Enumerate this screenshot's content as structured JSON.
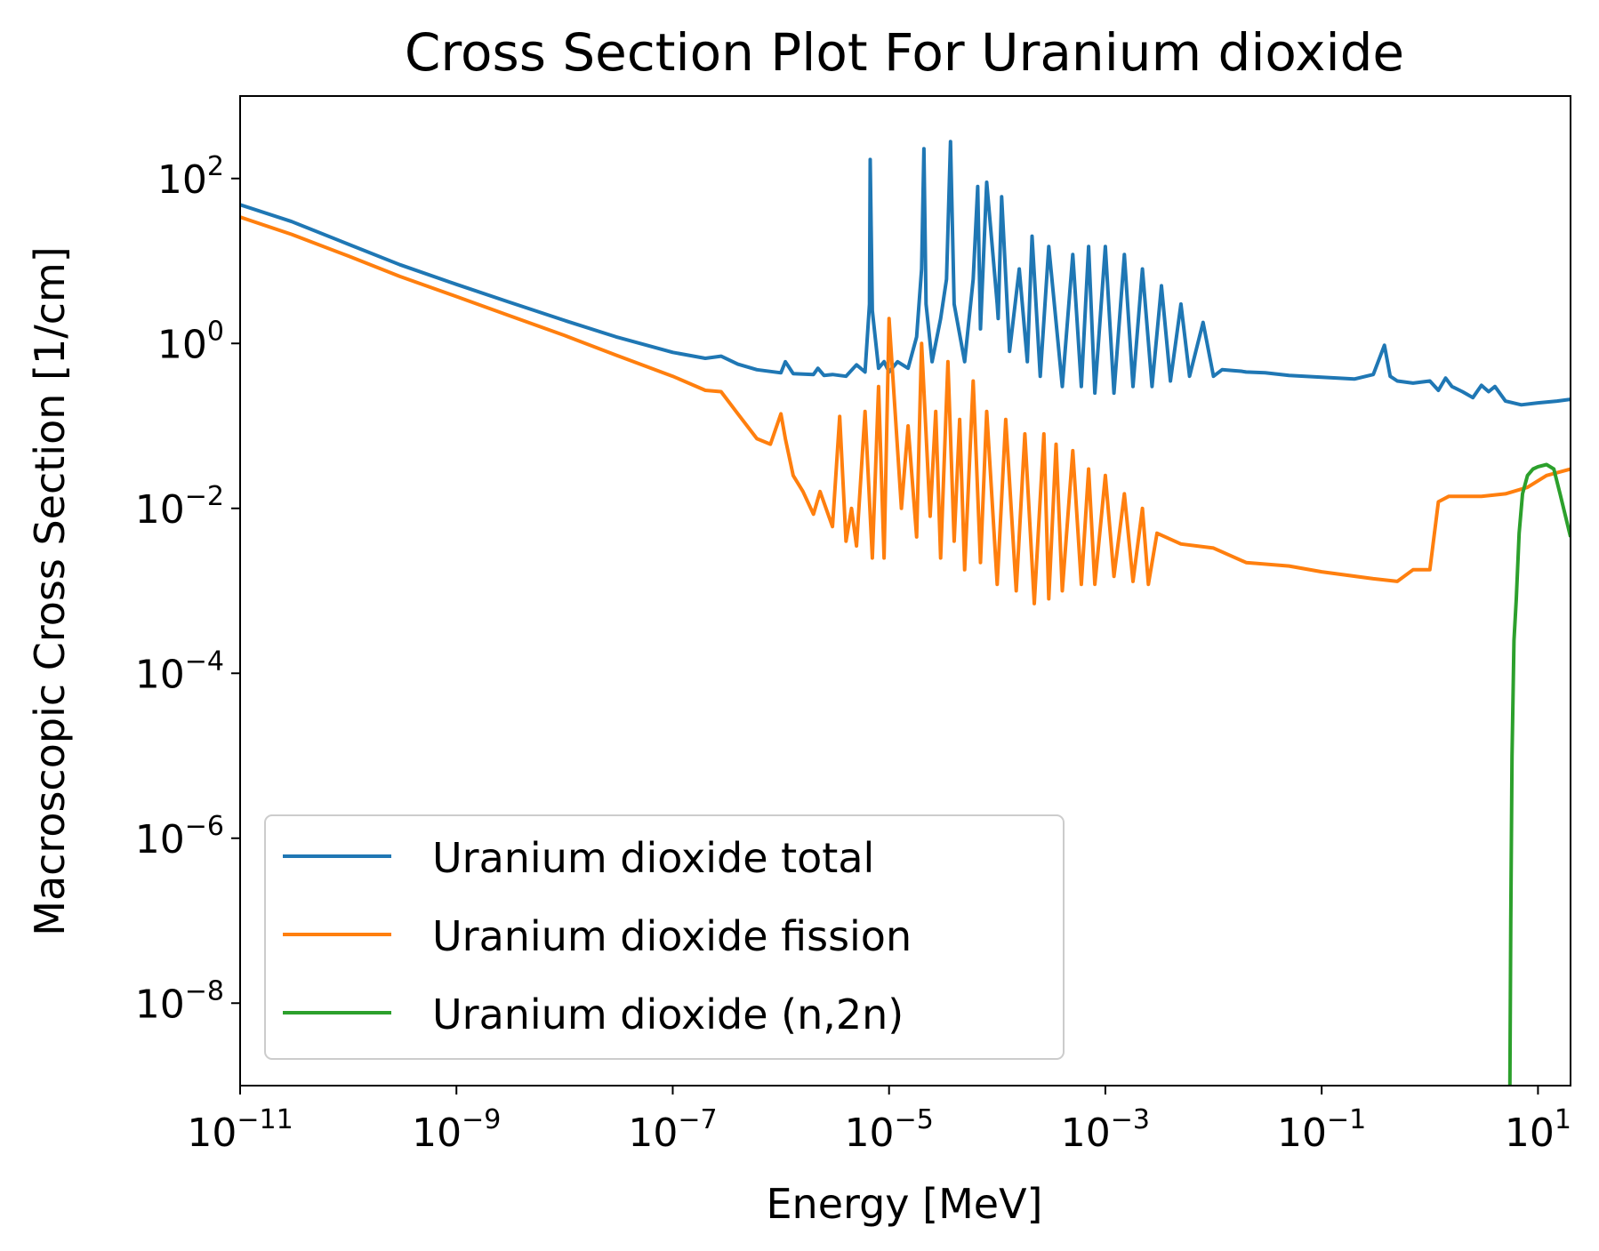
{
  "chart_data": {
    "type": "line",
    "title": "Cross Section Plot For Uranium dioxide",
    "xlabel": "Energy [MeV]",
    "ylabel": "Macroscopic Cross Section [1/cm]",
    "xscale": "log",
    "yscale": "log",
    "xlim": [
      1e-11,
      20
    ],
    "ylim": [
      1e-09,
      1000
    ],
    "grid": false,
    "legend_position": "lower-left",
    "x_ticks": [
      {
        "value": 1e-11,
        "base": "10",
        "exp": "−11"
      },
      {
        "value": 1e-09,
        "base": "10",
        "exp": "−9"
      },
      {
        "value": 1e-07,
        "base": "10",
        "exp": "−7"
      },
      {
        "value": 1e-05,
        "base": "10",
        "exp": "−5"
      },
      {
        "value": 0.001,
        "base": "10",
        "exp": "−3"
      },
      {
        "value": 0.1,
        "base": "10",
        "exp": "−1"
      },
      {
        "value": 10,
        "base": "10",
        "exp": "1"
      }
    ],
    "y_ticks": [
      {
        "value": 1e-08,
        "base": "10",
        "exp": "−8"
      },
      {
        "value": 1e-06,
        "base": "10",
        "exp": "−6"
      },
      {
        "value": 0.0001,
        "base": "10",
        "exp": "−4"
      },
      {
        "value": 0.01,
        "base": "10",
        "exp": "−2"
      },
      {
        "value": 1,
        "base": "10",
        "exp": "0"
      },
      {
        "value": 100,
        "base": "10",
        "exp": "2"
      }
    ],
    "series": [
      {
        "name": "Uranium dioxide total",
        "color": "#1f77b4",
        "x": [
          1e-11,
          3e-11,
          1e-10,
          3e-10,
          1e-09,
          3e-09,
          1e-08,
          3e-08,
          1e-07,
          2e-07,
          2.8e-07,
          4e-07,
          6e-07,
          1e-06,
          1.1e-06,
          1.3e-06,
          2e-06,
          2.2e-06,
          2.5e-06,
          3e-06,
          4e-06,
          5e-06,
          6e-06,
          6.6e-06,
          6.7e-06,
          7e-06,
          8e-06,
          9e-06,
          1e-05,
          1.2e-05,
          1.5e-05,
          1.8e-05,
          2e-05,
          2.1e-05,
          2.2e-05,
          2.5e-05,
          3e-05,
          3.4e-05,
          3.7e-05,
          4e-05,
          5e-05,
          6e-05,
          6.6e-05,
          7e-05,
          8e-05,
          0.0001,
          0.000102,
          0.00011,
          0.00013,
          0.00016,
          0.00019,
          0.00021,
          0.00025,
          0.0003,
          0.0004,
          0.0005,
          0.0006,
          0.0007,
          0.0008,
          0.001,
          0.0012,
          0.0015,
          0.0018,
          0.0022,
          0.0027,
          0.0033,
          0.004,
          0.005,
          0.006,
          0.008,
          0.01,
          0.012,
          0.015,
          0.018,
          0.02,
          0.03,
          0.05,
          0.1,
          0.2,
          0.3,
          0.38,
          0.43,
          0.5,
          0.7,
          1,
          1.2,
          1.4,
          1.6,
          2,
          2.5,
          3,
          3.5,
          4,
          5,
          7,
          10,
          15,
          20
        ],
        "values": [
          48,
          30,
          16,
          9,
          5.2,
          3.2,
          1.9,
          1.2,
          0.78,
          0.66,
          0.7,
          0.56,
          0.48,
          0.44,
          0.6,
          0.43,
          0.42,
          0.5,
          0.41,
          0.42,
          0.4,
          0.55,
          0.45,
          3,
          170,
          2.5,
          0.5,
          0.6,
          0.45,
          0.6,
          0.5,
          1.2,
          8,
          230,
          3,
          0.6,
          2,
          6,
          280,
          3,
          0.6,
          6,
          80,
          1.5,
          90,
          3,
          2,
          60,
          0.8,
          8,
          0.6,
          20,
          0.4,
          15,
          0.3,
          12,
          0.3,
          15,
          0.25,
          15,
          0.25,
          12,
          0.3,
          8,
          0.3,
          5,
          0.35,
          3,
          0.4,
          1.8,
          0.4,
          0.48,
          0.47,
          0.46,
          0.45,
          0.44,
          0.41,
          0.39,
          0.37,
          0.42,
          0.95,
          0.4,
          0.35,
          0.33,
          0.35,
          0.27,
          0.38,
          0.3,
          0.26,
          0.22,
          0.31,
          0.26,
          0.3,
          0.2,
          0.18,
          0.19,
          0.2,
          0.21
        ]
      },
      {
        "name": "Uranium dioxide fission",
        "color": "#ff7f0e",
        "x": [
          1e-11,
          3e-11,
          1e-10,
          3e-10,
          1e-09,
          3e-09,
          1e-08,
          3e-08,
          1e-07,
          2e-07,
          2.8e-07,
          4e-07,
          6e-07,
          8e-07,
          1e-06,
          1.1e-06,
          1.3e-06,
          1.6e-06,
          2e-06,
          2.3e-06,
          3e-06,
          3.5e-06,
          4e-06,
          4.5e-06,
          5e-06,
          6e-06,
          7e-06,
          8e-06,
          9e-06,
          1e-05,
          1.3e-05,
          1.5e-05,
          1.8e-05,
          2e-05,
          2.4e-05,
          2.7e-05,
          3e-05,
          3.5e-05,
          4e-05,
          4.5e-05,
          5e-05,
          6e-05,
          7e-05,
          8e-05,
          0.0001,
          0.00012,
          0.00015,
          0.00018,
          0.00022,
          0.00027,
          0.0003,
          0.00035,
          0.0004,
          0.0005,
          0.0006,
          0.0007,
          0.0008,
          0.001,
          0.0012,
          0.0015,
          0.0018,
          0.0022,
          0.0025,
          0.003,
          0.005,
          0.01,
          0.02,
          0.05,
          0.1,
          0.3,
          0.5,
          0.7,
          1,
          1.2,
          1.5,
          2,
          3,
          5,
          8,
          12,
          20
        ],
        "values": [
          34,
          21,
          11.5,
          6.5,
          3.7,
          2.2,
          1.25,
          0.72,
          0.4,
          0.27,
          0.26,
          0.14,
          0.07,
          0.06,
          0.14,
          0.07,
          0.025,
          0.016,
          0.0085,
          0.016,
          0.006,
          0.13,
          0.004,
          0.01,
          0.0035,
          0.15,
          0.0025,
          0.3,
          0.0025,
          2,
          0.01,
          0.1,
          0.0045,
          1,
          0.008,
          0.15,
          0.0025,
          0.6,
          0.004,
          0.12,
          0.0018,
          0.35,
          0.0022,
          0.15,
          0.0012,
          0.12,
          0.001,
          0.08,
          0.0007,
          0.08,
          0.0008,
          0.06,
          0.001,
          0.05,
          0.0012,
          0.03,
          0.0012,
          0.025,
          0.0015,
          0.015,
          0.0013,
          0.01,
          0.0012,
          0.005,
          0.0037,
          0.0033,
          0.0022,
          0.002,
          0.0017,
          0.0014,
          0.0013,
          0.0018,
          0.0018,
          0.012,
          0.014,
          0.014,
          0.014,
          0.015,
          0.018,
          0.025,
          0.03
        ]
      },
      {
        "name": "Uranium dioxide (n,2n)",
        "color": "#2ca02c",
        "x": [
          5.5,
          5.6,
          5.75,
          6,
          6.3,
          6.7,
          7.2,
          8,
          9,
          10,
          12,
          14,
          16,
          20
        ],
        "values": [
          1e-09,
          1e-07,
          1e-05,
          0.00025,
          0.0008,
          0.005,
          0.015,
          0.025,
          0.03,
          0.032,
          0.034,
          0.03,
          0.015,
          0.0045
        ]
      }
    ]
  }
}
